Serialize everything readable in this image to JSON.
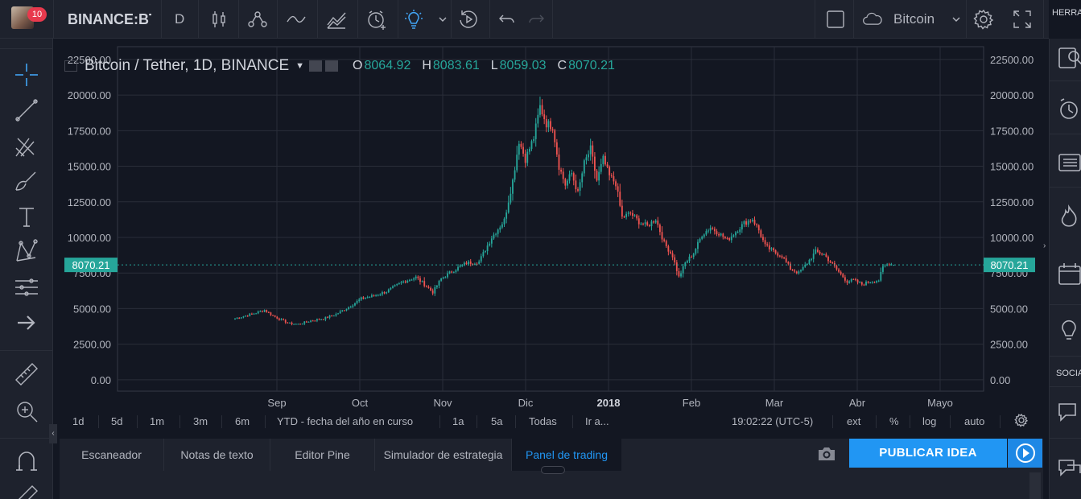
{
  "header": {
    "notifications": "10",
    "symbol": "BINANCE:BTCUSDT",
    "interval": "D",
    "watchlist_label": "Bitcoin",
    "right_tab": "HERRA"
  },
  "legend": {
    "title": "Bitcoin / Tether, 1D, BINANCE",
    "o_label": "O",
    "o_value": "8064.92",
    "h_label": "H",
    "h_value": "8083.61",
    "l_label": "L",
    "l_value": "8059.03",
    "c_label": "C",
    "c_value": "8070.21"
  },
  "chart_data": {
    "type": "candlestick",
    "symbol": "Bitcoin / Tether",
    "y_ticks": [
      "22500.00",
      "20000.00",
      "17500.00",
      "15000.00",
      "12500.00",
      "10000.00",
      "7500.00",
      "5000.00",
      "2500.00",
      "0.00"
    ],
    "ylim": [
      -800,
      23400
    ],
    "x_ticks": [
      {
        "label": "Sep",
        "bold": false
      },
      {
        "label": "Oct",
        "bold": false
      },
      {
        "label": "Nov",
        "bold": false
      },
      {
        "label": "Dic",
        "bold": false
      },
      {
        "label": "2018",
        "bold": true
      },
      {
        "label": "Feb",
        "bold": false
      },
      {
        "label": "Mar",
        "bold": false
      },
      {
        "label": "Abr",
        "bold": false
      },
      {
        "label": "Mayo",
        "bold": false
      }
    ],
    "last_price": 8070.21,
    "last_price_label": "8070.21",
    "up_color": "#26a69a",
    "down_color": "#ef5350",
    "series_anchors": [
      [
        0,
        4300
      ],
      [
        10,
        4700
      ],
      [
        14,
        4900
      ],
      [
        18,
        4500
      ],
      [
        22,
        4200
      ],
      [
        26,
        3950
      ],
      [
        30,
        3900
      ],
      [
        36,
        4150
      ],
      [
        42,
        4300
      ],
      [
        48,
        4600
      ],
      [
        54,
        5100
      ],
      [
        60,
        5700
      ],
      [
        66,
        5900
      ],
      [
        72,
        6200
      ],
      [
        80,
        6900
      ],
      [
        86,
        7200
      ],
      [
        90,
        6700
      ],
      [
        94,
        6150
      ],
      [
        98,
        7100
      ],
      [
        104,
        7700
      ],
      [
        110,
        8200
      ],
      [
        116,
        8300
      ],
      [
        122,
        10000
      ],
      [
        128,
        11200
      ],
      [
        132,
        14000
      ],
      [
        135,
        16800
      ],
      [
        138,
        15500
      ],
      [
        142,
        17000
      ],
      [
        145,
        19200
      ],
      [
        148,
        18000
      ],
      [
        151,
        17800
      ],
      [
        154,
        15000
      ],
      [
        157,
        13700
      ],
      [
        160,
        14500
      ],
      [
        163,
        13100
      ],
      [
        166,
        15200
      ],
      [
        169,
        16200
      ],
      [
        172,
        14000
      ],
      [
        175,
        15500
      ],
      [
        178,
        14300
      ],
      [
        181,
        13800
      ],
      [
        184,
        11400
      ],
      [
        188,
        11700
      ],
      [
        192,
        11100
      ],
      [
        196,
        10800
      ],
      [
        200,
        11300
      ],
      [
        204,
        9600
      ],
      [
        208,
        8700
      ],
      [
        211,
        7200
      ],
      [
        214,
        8200
      ],
      [
        218,
        8900
      ],
      [
        222,
        10200
      ],
      [
        226,
        10700
      ],
      [
        230,
        10300
      ],
      [
        234,
        9800
      ],
      [
        238,
        10400
      ],
      [
        242,
        11000
      ],
      [
        246,
        11300
      ],
      [
        249,
        10500
      ],
      [
        252,
        9400
      ],
      [
        256,
        9000
      ],
      [
        260,
        8700
      ],
      [
        264,
        7800
      ],
      [
        268,
        7500
      ],
      [
        272,
        8200
      ],
      [
        276,
        9000
      ],
      [
        280,
        8800
      ],
      [
        284,
        8100
      ],
      [
        288,
        7400
      ],
      [
        291,
        6900
      ],
      [
        294,
        7000
      ],
      [
        298,
        6700
      ],
      [
        302,
        6900
      ],
      [
        306,
        7000
      ],
      [
        308,
        7900
      ],
      [
        311,
        8200
      ],
      [
        313,
        8070
      ]
    ],
    "last_ohlc": [
      8064.92,
      8083.61,
      8059.03,
      8070.21
    ]
  },
  "timebar": {
    "ranges": [
      "1d",
      "5d",
      "1m",
      "3m",
      "6m",
      "YTD - fecha del año en curso",
      "1a",
      "5a",
      "Todas",
      "Ir a..."
    ],
    "clock": "19:02:22 (UTC-5)",
    "options": [
      "ext",
      "%",
      "log",
      "auto"
    ]
  },
  "bottom": {
    "tabs": [
      "Escaneador",
      "Notas de texto",
      "Editor Pine",
      "Simulador de estrategia",
      "Panel de trading"
    ],
    "publish": "PUBLICAR IDEA"
  },
  "rightbar": {
    "social_label": "SOCIA"
  },
  "icons": {
    "left": [
      "crosshair-icon",
      "trend-line-icon",
      "pitchfork-icon",
      "brush-icon",
      "text-icon",
      "pattern-icon",
      "measure-lines-icon",
      "arrow-icon",
      "ruler-icon",
      "zoom-in-icon",
      "magnet-icon"
    ],
    "right": [
      "watchlist-icon",
      "alarm-icon",
      "list-icon",
      "hotlist-icon",
      "calendar-icon",
      "idea-icon",
      "chat-icon",
      "private-chat-icon"
    ]
  }
}
